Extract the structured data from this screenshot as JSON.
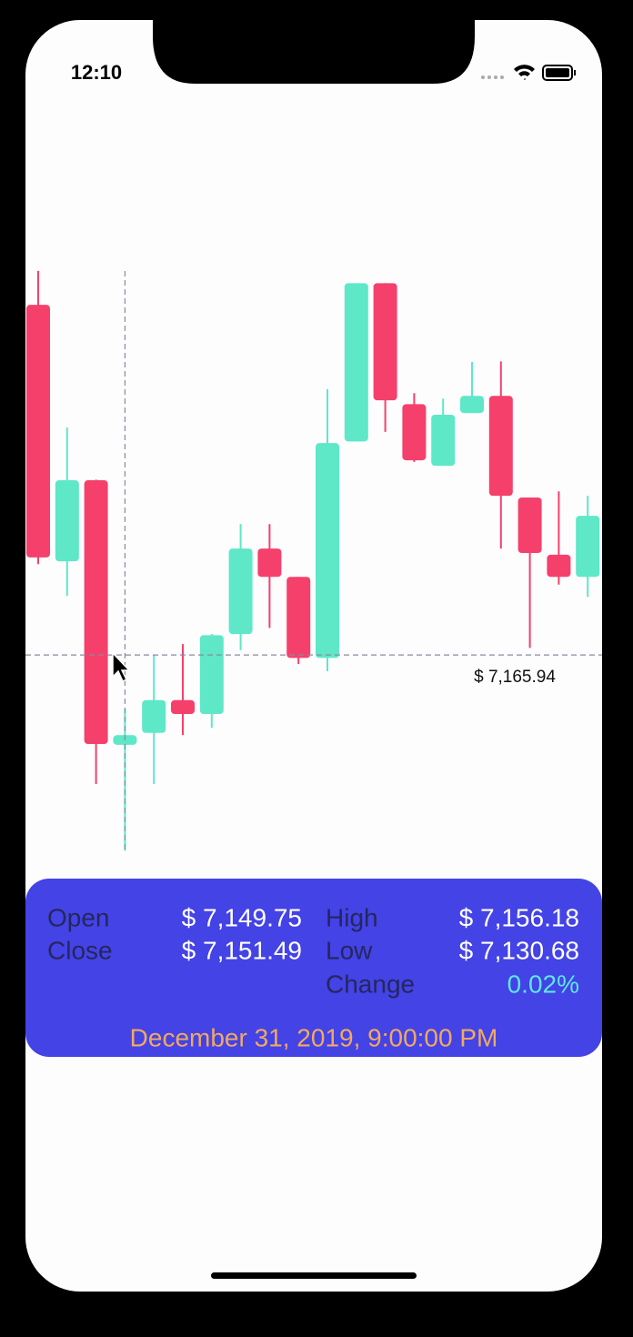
{
  "status_bar": {
    "time": "12:10"
  },
  "chart_data": {
    "type": "candlestick",
    "open": [
      7229.0,
      7182.8,
      7197.4,
      7149.75,
      7151.9,
      7157.8,
      7155.3,
      7169.7,
      7185.1,
      7180.0,
      7165.4,
      7204.4,
      7232.9,
      7211.1,
      7200.0,
      7209.5,
      7212.6,
      7194.3,
      7184.0,
      7180.0
    ],
    "high": [
      7235.1,
      7206.9,
      7197.5,
      7156.18,
      7165.9,
      7167.9,
      7169.7,
      7189.5,
      7189.5,
      7180.0,
      7213.8,
      7232.9,
      7232.9,
      7213.1,
      7212.1,
      7218.7,
      7218.8,
      7194.3,
      7195.4,
      7194.6
    ],
    "low": [
      7182.3,
      7176.6,
      7142.7,
      7130.68,
      7142.7,
      7151.5,
      7152.8,
      7166.8,
      7170.8,
      7164.3,
      7163.0,
      7204.4,
      7206.1,
      7200.7,
      7200.0,
      7209.5,
      7185.1,
      7167.2,
      7178.6,
      7176.4
    ],
    "close": [
      7183.5,
      7197.4,
      7149.9,
      7151.49,
      7157.8,
      7155.3,
      7169.5,
      7185.1,
      7180.0,
      7165.4,
      7204.1,
      7232.9,
      7211.8,
      7201.0,
      7209.2,
      7212.6,
      7194.6,
      7184.3,
      7180.0,
      7191.0
    ],
    "up_color": "#5ee8c8",
    "down_color": "#f5406c",
    "ylim": [
      7125,
      7240
    ],
    "crosshair": {
      "value": 7165.94,
      "label": "$ 7,165.94"
    }
  },
  "info": {
    "open_label": "Open",
    "open": "$ 7,149.75",
    "high_label": "High",
    "high": "$ 7,156.18",
    "close_label": "Close",
    "close": "$ 7,151.49",
    "low_label": "Low",
    "low": "$ 7,130.68",
    "change_label": "Change",
    "change": "0.02%",
    "date": "December 31, 2019, 9:00:00 PM"
  }
}
